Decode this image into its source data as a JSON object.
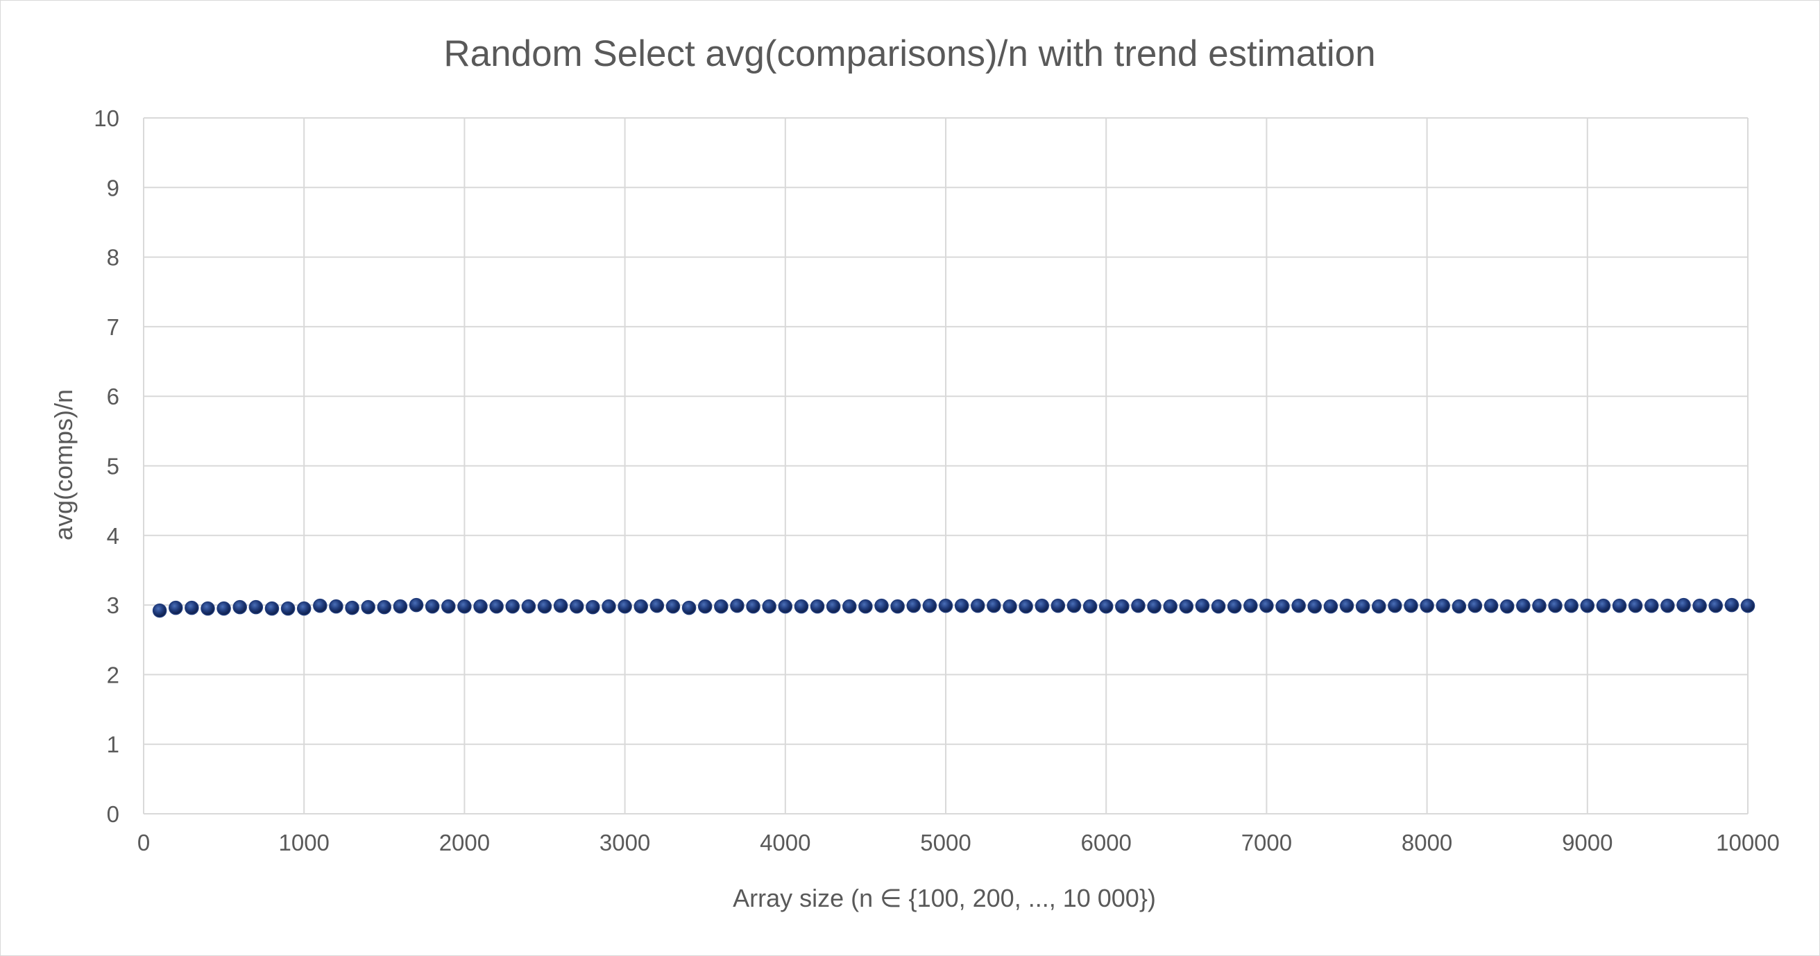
{
  "chart_data": {
    "type": "scatter",
    "title": "Random Select avg(comparisons)/n with trend estimation",
    "xlabel": "Array size (n ∈ {100, 200, ..., 10 000})",
    "ylabel": "avg(comps)/n",
    "xlim": [
      0,
      10000
    ],
    "ylim": [
      0,
      10
    ],
    "x_ticks": [
      "0",
      "1000",
      "2000",
      "3000",
      "4000",
      "5000",
      "6000",
      "7000",
      "8000",
      "9000",
      "10000"
    ],
    "y_ticks": [
      "0",
      "1",
      "2",
      "3",
      "4",
      "5",
      "6",
      "7",
      "8",
      "9",
      "10"
    ],
    "grid": true,
    "legend": "none",
    "marker_color": "#1f3a7a",
    "series": [
      {
        "x": [
          100,
          200,
          300,
          400,
          500,
          600,
          700,
          800,
          900,
          1000,
          1100,
          1200,
          1300,
          1400,
          1500,
          1600,
          1700,
          1800,
          1900,
          2000,
          2100,
          2200,
          2300,
          2400,
          2500,
          2600,
          2700,
          2800,
          2900,
          3000,
          3100,
          3200,
          3300,
          3400,
          3500,
          3600,
          3700,
          3800,
          3900,
          4000,
          4100,
          4200,
          4300,
          4400,
          4500,
          4600,
          4700,
          4800,
          4900,
          5000,
          5100,
          5200,
          5300,
          5400,
          5500,
          5600,
          5700,
          5800,
          5900,
          6000,
          6100,
          6200,
          6300,
          6400,
          6500,
          6600,
          6700,
          6800,
          6900,
          7000,
          7100,
          7200,
          7300,
          7400,
          7500,
          7600,
          7700,
          7800,
          7900,
          8000,
          8100,
          8200,
          8300,
          8400,
          8500,
          8600,
          8700,
          8800,
          8900,
          9000,
          9100,
          9200,
          9300,
          9400,
          9500,
          9600,
          9700,
          9800,
          9900,
          10000
        ],
        "values": [
          2.92,
          2.96,
          2.96,
          2.95,
          2.95,
          2.97,
          2.97,
          2.95,
          2.95,
          2.95,
          2.99,
          2.98,
          2.96,
          2.97,
          2.97,
          2.98,
          3.0,
          2.98,
          2.98,
          2.98,
          2.98,
          2.98,
          2.98,
          2.98,
          2.98,
          2.99,
          2.98,
          2.97,
          2.98,
          2.98,
          2.98,
          2.99,
          2.98,
          2.96,
          2.98,
          2.98,
          2.99,
          2.98,
          2.98,
          2.98,
          2.98,
          2.98,
          2.98,
          2.98,
          2.98,
          2.99,
          2.98,
          2.99,
          2.99,
          2.99,
          2.99,
          2.99,
          2.99,
          2.98,
          2.98,
          2.99,
          2.99,
          2.99,
          2.98,
          2.98,
          2.98,
          2.99,
          2.98,
          2.98,
          2.98,
          2.99,
          2.98,
          2.98,
          2.99,
          2.99,
          2.98,
          2.99,
          2.98,
          2.98,
          2.99,
          2.98,
          2.98,
          2.99,
          2.99,
          2.99,
          2.99,
          2.98,
          2.99,
          2.99,
          2.98,
          2.99,
          2.99,
          2.99,
          2.99,
          2.99,
          2.99,
          2.99,
          2.99,
          2.99,
          2.99,
          3.0,
          2.99,
          2.99,
          3.0,
          2.99
        ]
      }
    ]
  }
}
